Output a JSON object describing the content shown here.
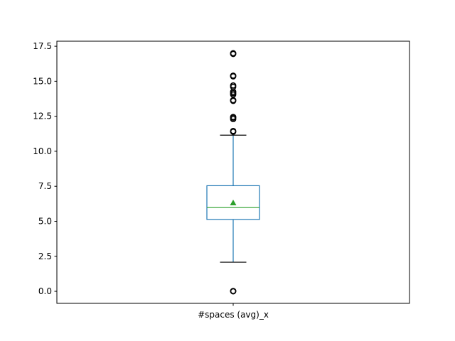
{
  "chart_data": {
    "type": "boxplot",
    "title": "",
    "xlabel": "",
    "ylabel": "",
    "categories": [
      "#spaces (avg)_x"
    ],
    "ylim": [
      -0.86,
      17.86
    ],
    "yticks": [
      0.0,
      2.5,
      5.0,
      7.5,
      10.0,
      12.5,
      15.0,
      17.5
    ],
    "ytick_labels": [
      "0.0",
      "2.5",
      "5.0",
      "7.5",
      "10.0",
      "12.5",
      "15.0",
      "17.5"
    ],
    "grid": false,
    "boxes": [
      {
        "label": "#spaces (avg)_x",
        "whisker_low": 2.08,
        "q1": 5.13,
        "median": 5.98,
        "mean": 6.32,
        "q3": 7.54,
        "whisker_high": 11.15,
        "outliers": [
          0.0,
          0.02,
          11.4,
          11.45,
          12.3,
          12.4,
          12.45,
          13.6,
          13.65,
          14.05,
          14.15,
          14.25,
          14.6,
          14.7,
          15.35,
          15.4,
          16.95,
          17.0
        ]
      }
    ],
    "colors": {
      "box": "#1f77b4",
      "median": "#2ca02c",
      "mean": "#2ca02c",
      "caps": "#000000",
      "outliers": "#000000"
    }
  }
}
